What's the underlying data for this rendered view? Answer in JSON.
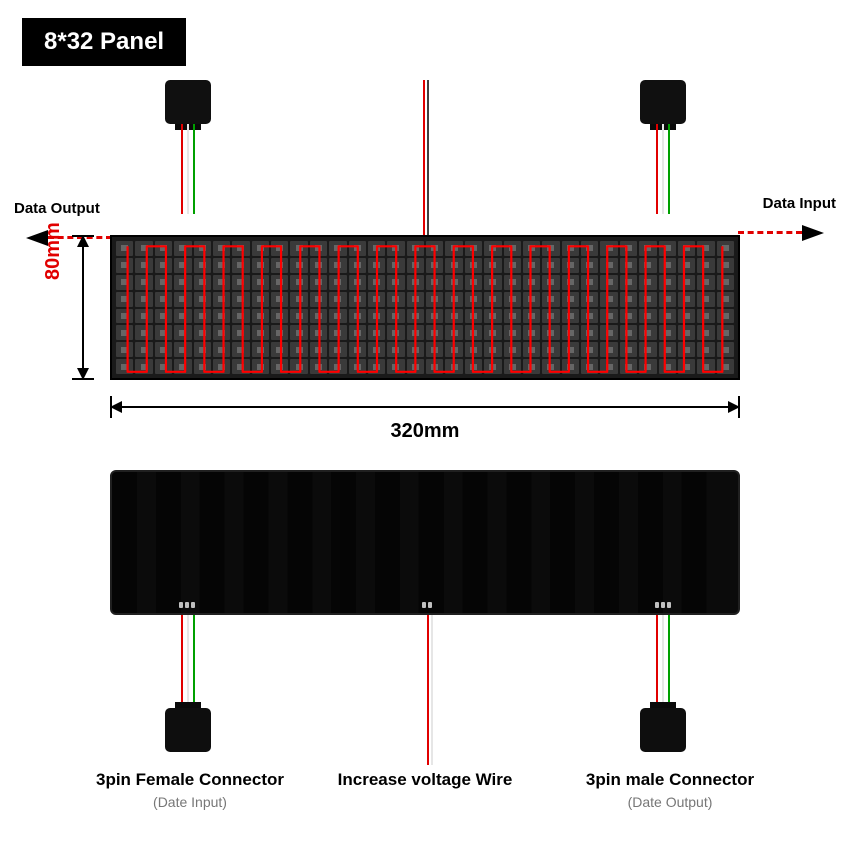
{
  "title": "8*32 Panel",
  "panel": {
    "cols": 32,
    "rows": 8,
    "width_label": "320mm",
    "height_label": "80mm",
    "serpentine_color": "#ff0000",
    "serpentine_stroke": 2.2,
    "dimension_color": "#000000",
    "height_label_color": "#e10000",
    "width_label_color": "#000000",
    "led_bg": "#1a1a1a"
  },
  "labels": {
    "data_output": "Data Output",
    "data_input": "Data Input"
  },
  "wire_colors": {
    "red": "#e10000",
    "white": "#e6e6e6",
    "green": "#00a000",
    "black": "#404040"
  },
  "bottom": {
    "left_label": "3pin Female Connector",
    "left_sublabel": "(Date Input)",
    "center_label": "Increase voltage Wire",
    "right_label": "3pin male Connector",
    "right_sublabel": "(Date Output)"
  },
  "typography": {
    "title_fontsize": 24,
    "label_fontsize": 15,
    "dim_fontsize": 20,
    "bot_label_fontsize": 17,
    "bot_sublabel_fontsize": 14
  },
  "colors": {
    "bg": "#ffffff",
    "title_bg": "#000000",
    "title_fg": "#ffffff",
    "sublabel_fg": "#777777"
  }
}
